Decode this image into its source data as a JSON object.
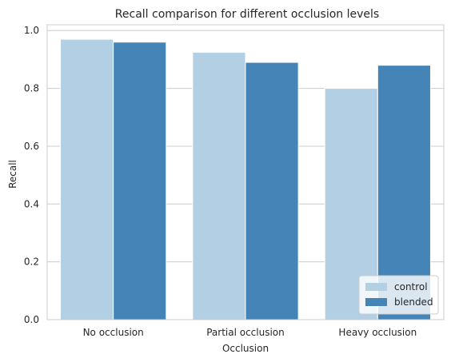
{
  "chart_data": {
    "type": "bar",
    "title": "Recall comparison for different occlusion levels",
    "xlabel": "Occlusion",
    "ylabel": "Recall",
    "categories": [
      "No occlusion",
      "Partial occlusion",
      "Heavy occlusion"
    ],
    "series": [
      {
        "name": "control",
        "values": [
          0.97,
          0.925,
          0.8
        ],
        "color": "#b3cfe3"
      },
      {
        "name": "blended",
        "values": [
          0.96,
          0.89,
          0.88
        ],
        "color": "#4584b6"
      }
    ],
    "ylim": [
      0,
      1.02
    ],
    "yticks": [
      0.0,
      0.2,
      0.4,
      0.6,
      0.8,
      1.0
    ],
    "ytick_labels": [
      "0.0",
      "0.2",
      "0.4",
      "0.6",
      "0.8",
      "1.0"
    ],
    "grid": true,
    "legend_position": "lower right",
    "style": {
      "grid_color": "#cccccc",
      "axes_edge_color": "#cccccc"
    }
  }
}
